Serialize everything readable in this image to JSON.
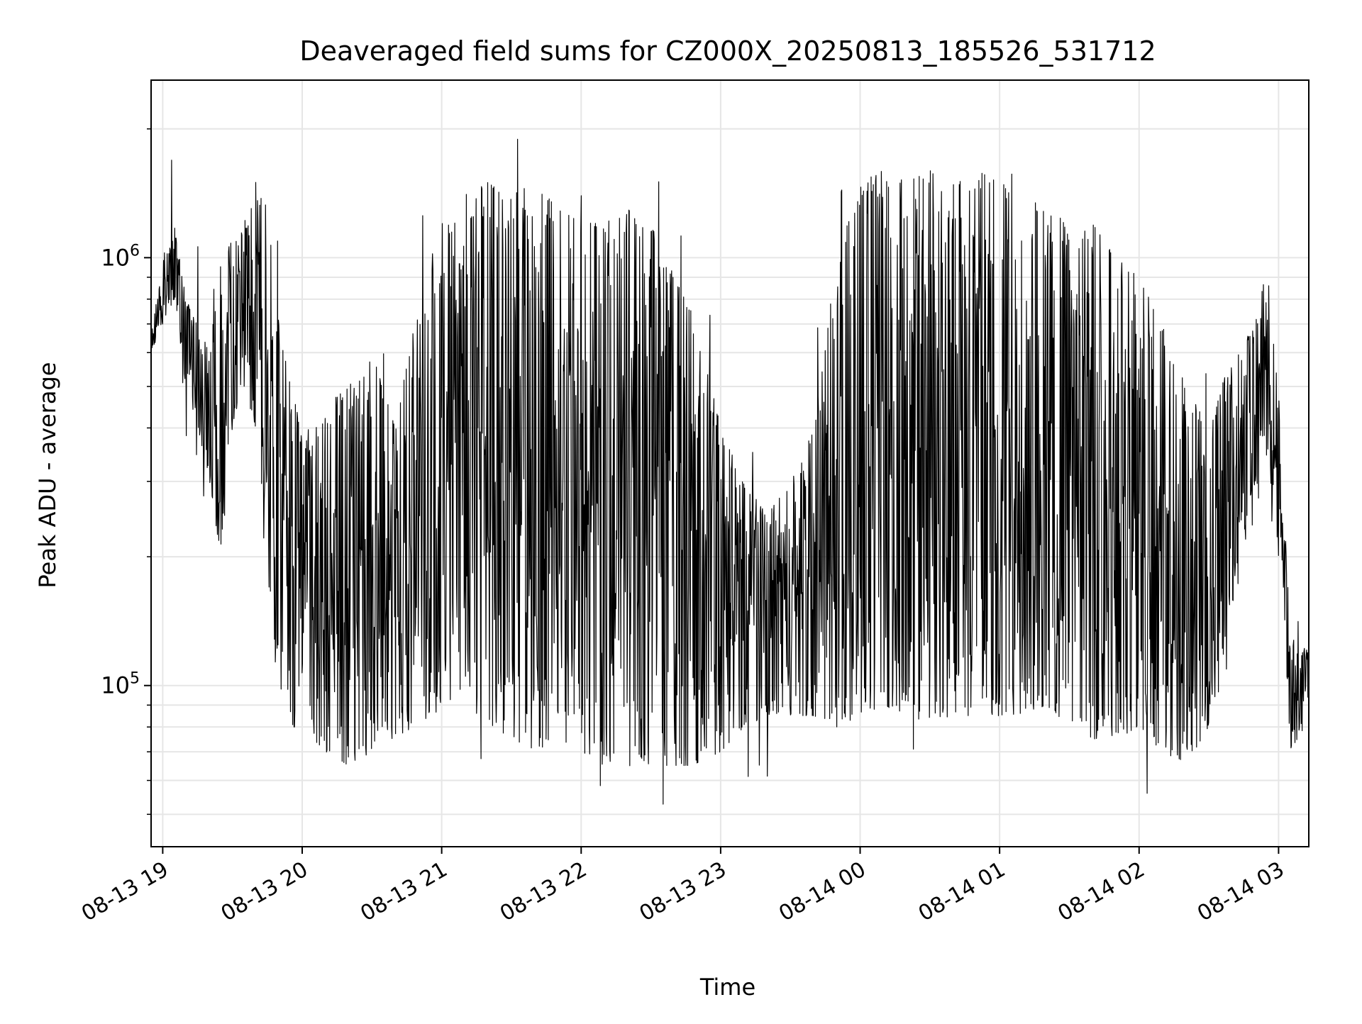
{
  "chart_data": {
    "type": "line",
    "title": "Deaveraged field sums for CZ000X_20250813_185526_531712",
    "xlabel": "Time",
    "ylabel": "Peak ADU - average",
    "yscale": "log",
    "grid": true,
    "x_tick_labels": [
      "08-13 19",
      "08-13 20",
      "08-13 21",
      "08-13 22",
      "08-13 23",
      "08-14 00",
      "08-14 01",
      "08-14 02",
      "08-14 03"
    ],
    "y_tick_labels": [
      {
        "base": "10",
        "exp": "5"
      },
      {
        "base": "10",
        "exp": "6"
      }
    ],
    "xlim": [
      "2025-08-13 18:55",
      "2025-08-14 03:13"
    ],
    "ylim": [
      42000,
      2600000
    ],
    "line_color": "#000000",
    "series": [
      {
        "x": [
          "2025-08-13 18:55",
          "2025-08-13 19:00",
          "2025-08-13 19:05",
          "2025-08-13 19:10",
          "2025-08-13 19:15",
          "2025-08-13 19:20",
          "2025-08-13 19:25",
          "2025-08-13 19:30",
          "2025-08-13 19:35",
          "2025-08-13 19:40",
          "2025-08-13 19:45",
          "2025-08-13 19:50",
          "2025-08-13 19:55",
          "2025-08-13 20:00",
          "2025-08-13 20:10",
          "2025-08-13 20:20",
          "2025-08-13 20:30",
          "2025-08-13 20:40",
          "2025-08-13 20:50",
          "2025-08-13 21:00",
          "2025-08-13 21:10",
          "2025-08-13 21:20",
          "2025-08-13 21:30",
          "2025-08-13 21:40",
          "2025-08-13 21:50",
          "2025-08-13 22:00",
          "2025-08-13 22:10",
          "2025-08-13 22:20",
          "2025-08-13 22:30",
          "2025-08-13 22:40",
          "2025-08-13 22:50",
          "2025-08-13 23:00",
          "2025-08-13 23:10",
          "2025-08-13 23:20",
          "2025-08-13 23:30",
          "2025-08-13 23:40",
          "2025-08-13 23:50",
          "2025-08-14 00:00",
          "2025-08-14 00:10",
          "2025-08-14 00:20",
          "2025-08-14 00:30",
          "2025-08-14 00:40",
          "2025-08-14 00:50",
          "2025-08-14 01:00",
          "2025-08-14 01:10",
          "2025-08-14 01:20",
          "2025-08-14 01:30",
          "2025-08-14 01:40",
          "2025-08-14 01:50",
          "2025-08-14 02:00",
          "2025-08-14 02:10",
          "2025-08-14 02:20",
          "2025-08-14 02:30",
          "2025-08-14 02:40",
          "2025-08-14 02:50",
          "2025-08-14 02:55",
          "2025-08-14 03:00",
          "2025-08-14 03:05",
          "2025-08-14 03:13"
        ],
        "y_upper": [
          650000,
          1000000,
          1200000,
          800000,
          700000,
          600000,
          1000000,
          1100000,
          1200000,
          1500000,
          1300000,
          700000,
          500000,
          400000,
          450000,
          500000,
          600000,
          400000,
          800000,
          1200000,
          1400000,
          1500000,
          1400000,
          1500000,
          1300000,
          1400000,
          1200000,
          1300000,
          1200000,
          900000,
          700000,
          400000,
          300000,
          250000,
          300000,
          400000,
          1000000,
          1500000,
          1600000,
          1500000,
          1600000,
          1500000,
          1600000,
          1500000,
          1400000,
          1300000,
          1200000,
          1200000,
          1000000,
          900000,
          700000,
          500000,
          400000,
          600000,
          700000,
          950000,
          500000,
          130000,
          120000
        ],
        "y_lower": [
          600000,
          700000,
          800000,
          500000,
          400000,
          300000,
          200000,
          400000,
          500000,
          400000,
          150000,
          100000,
          80000,
          80000,
          70000,
          65000,
          70000,
          75000,
          80000,
          90000,
          90000,
          80000,
          75000,
          70000,
          75000,
          70000,
          65000,
          70000,
          65000,
          65000,
          65000,
          70000,
          80000,
          85000,
          85000,
          85000,
          80000,
          85000,
          90000,
          85000,
          80000,
          85000,
          85000,
          85000,
          85000,
          90000,
          80000,
          75000,
          75000,
          80000,
          70000,
          65000,
          80000,
          150000,
          250000,
          350000,
          200000,
          65000,
          95000
        ]
      }
    ]
  }
}
